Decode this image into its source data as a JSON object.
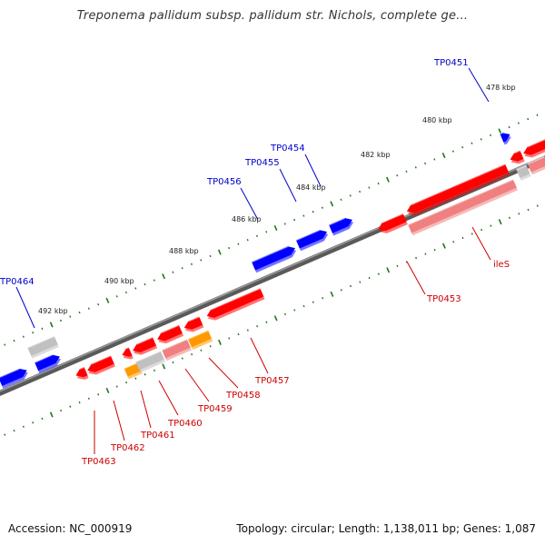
{
  "title": "Treponema pallidum subsp. pallidum str. Nichols, complete ge...",
  "footer": {
    "accession": "Accession: NC_000919",
    "summary": "Topology: circular; Length: 1,138,011 bp; Genes: 1,087"
  },
  "colors": {
    "forward": "#0000ff",
    "reverse": "#ff0000",
    "reverse_light": "#f08080",
    "rna": "#ff9900",
    "grey": "#c0c0c0",
    "backbone": "#808080",
    "tick": "#1a7a1a",
    "label_forward": "#0000cc",
    "label_reverse": "#cc0000"
  },
  "scale_labels": [
    "478 kbp",
    "480 kbp",
    "482 kbp",
    "484 kbp",
    "486 kbp",
    "488 kbp",
    "490 kbp",
    "492 kbp"
  ],
  "gene_labels": {
    "forward": [
      "TP0451",
      "TP0454",
      "TP0455",
      "TP0456",
      "TP0464"
    ],
    "reverse": [
      "ileS",
      "TP0453",
      "TP0457",
      "TP0458",
      "TP0459",
      "TP0460",
      "TP0461",
      "TP0462",
      "TP0463"
    ]
  }
}
